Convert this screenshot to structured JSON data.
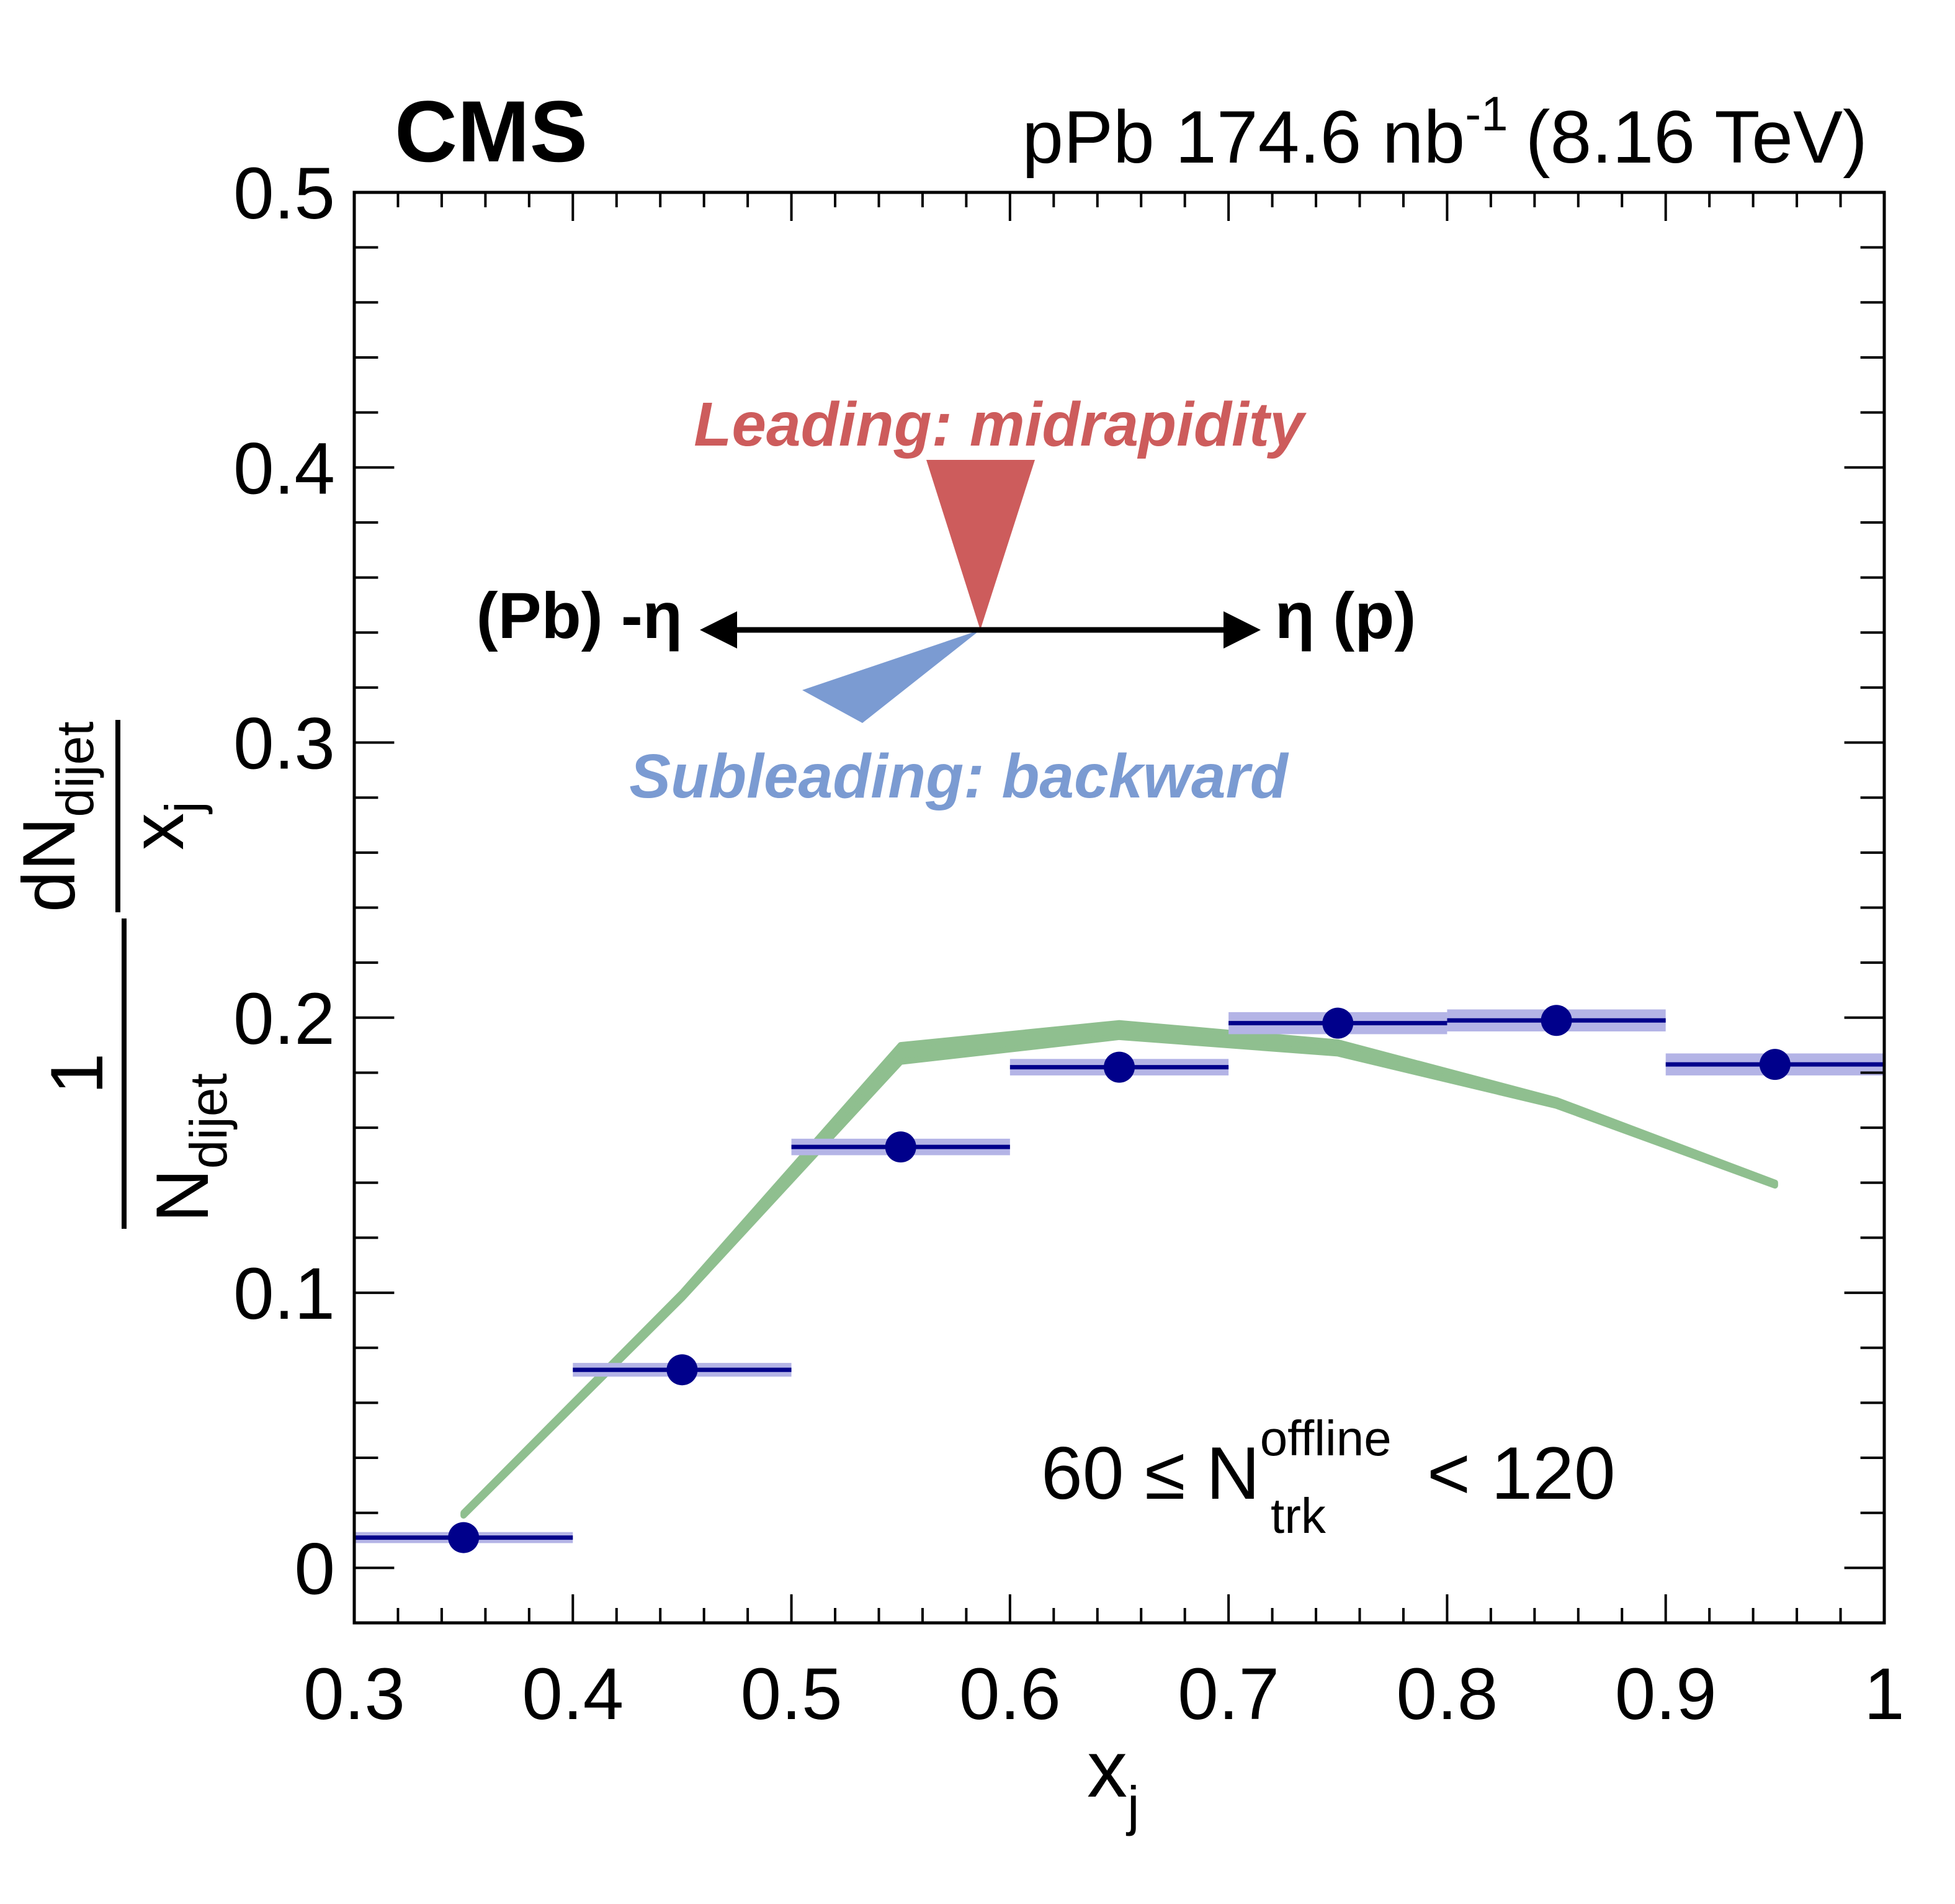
{
  "header": {
    "experiment": "CMS",
    "lumi_prefix": "pPb 174.6 nb",
    "lumi_exponent": "-1",
    "energy": "(8.16 TeV)"
  },
  "chart_data": {
    "type": "scatter",
    "xlabel": {
      "main": "x",
      "sub": "j"
    },
    "ylabel": {
      "left_num": "1",
      "left_den_main": "N",
      "left_den_sub": "dijet",
      "right_num_main": "dN",
      "right_num_sub": "dijet",
      "right_den_main": "x",
      "right_den_sub": "j"
    },
    "xlim": [
      0.3,
      1.0
    ],
    "ylim": [
      -0.02,
      0.5
    ],
    "x_ticks": [
      {
        "value": 0.3,
        "label": "0.3"
      },
      {
        "value": 0.4,
        "label": "0.4"
      },
      {
        "value": 0.5,
        "label": "0.5"
      },
      {
        "value": 0.6,
        "label": "0.6"
      },
      {
        "value": 0.7,
        "label": "0.7"
      },
      {
        "value": 0.8,
        "label": "0.8"
      },
      {
        "value": 0.9,
        "label": "0.9"
      },
      {
        "value": 1.0,
        "label": "1"
      }
    ],
    "y_ticks": [
      {
        "value": 0.0,
        "label": "0"
      },
      {
        "value": 0.1,
        "label": "0.1"
      },
      {
        "value": 0.2,
        "label": "0.2"
      },
      {
        "value": 0.3,
        "label": "0.3"
      },
      {
        "value": 0.4,
        "label": "0.4"
      },
      {
        "value": 0.5,
        "label": "0.5"
      }
    ],
    "x_minor_step": 0.02,
    "y_minor_step": 0.02,
    "grid": false,
    "legend": "none",
    "series": [
      {
        "kind": "data_points",
        "color": "#00008b",
        "band_color": "#b4b4e6",
        "points": [
          {
            "x": 0.35,
            "y": 0.011,
            "xlo": 0.3,
            "xhi": 0.4,
            "syst": 0.002
          },
          {
            "x": 0.45,
            "y": 0.072,
            "xlo": 0.4,
            "xhi": 0.5,
            "syst": 0.0025
          },
          {
            "x": 0.55,
            "y": 0.153,
            "xlo": 0.5,
            "xhi": 0.6,
            "syst": 0.003
          },
          {
            "x": 0.65,
            "y": 0.182,
            "xlo": 0.6,
            "xhi": 0.7,
            "syst": 0.003
          },
          {
            "x": 0.75,
            "y": 0.198,
            "xlo": 0.7,
            "xhi": 0.8,
            "syst": 0.004
          },
          {
            "x": 0.85,
            "y": 0.199,
            "xlo": 0.8,
            "xhi": 0.9,
            "syst": 0.004
          },
          {
            "x": 0.95,
            "y": 0.183,
            "xlo": 0.9,
            "xhi": 1.0,
            "syst": 0.004
          }
        ]
      },
      {
        "kind": "band",
        "color": "#8fbf8f",
        "x": [
          0.35,
          0.45,
          0.55,
          0.65,
          0.75,
          0.85,
          0.95
        ],
        "ylo": [
          0.019,
          0.098,
          0.184,
          0.193,
          0.187,
          0.168,
          0.139
        ],
        "yhi": [
          0.02,
          0.1,
          0.19,
          0.198,
          0.191,
          0.17,
          0.14
        ]
      }
    ]
  },
  "annotations": {
    "leading": "Leading: midrapidity",
    "leading_color": "#cd5c5c",
    "subleading": "Subleading: backward",
    "subleading_color": "#7b9bd2",
    "axis_left": "(Pb) -η",
    "axis_right": "η (p)",
    "mult_left": "60 ≤ N",
    "mult_sup": "offline",
    "mult_sub": "trk",
    "mult_right": "< 120"
  }
}
